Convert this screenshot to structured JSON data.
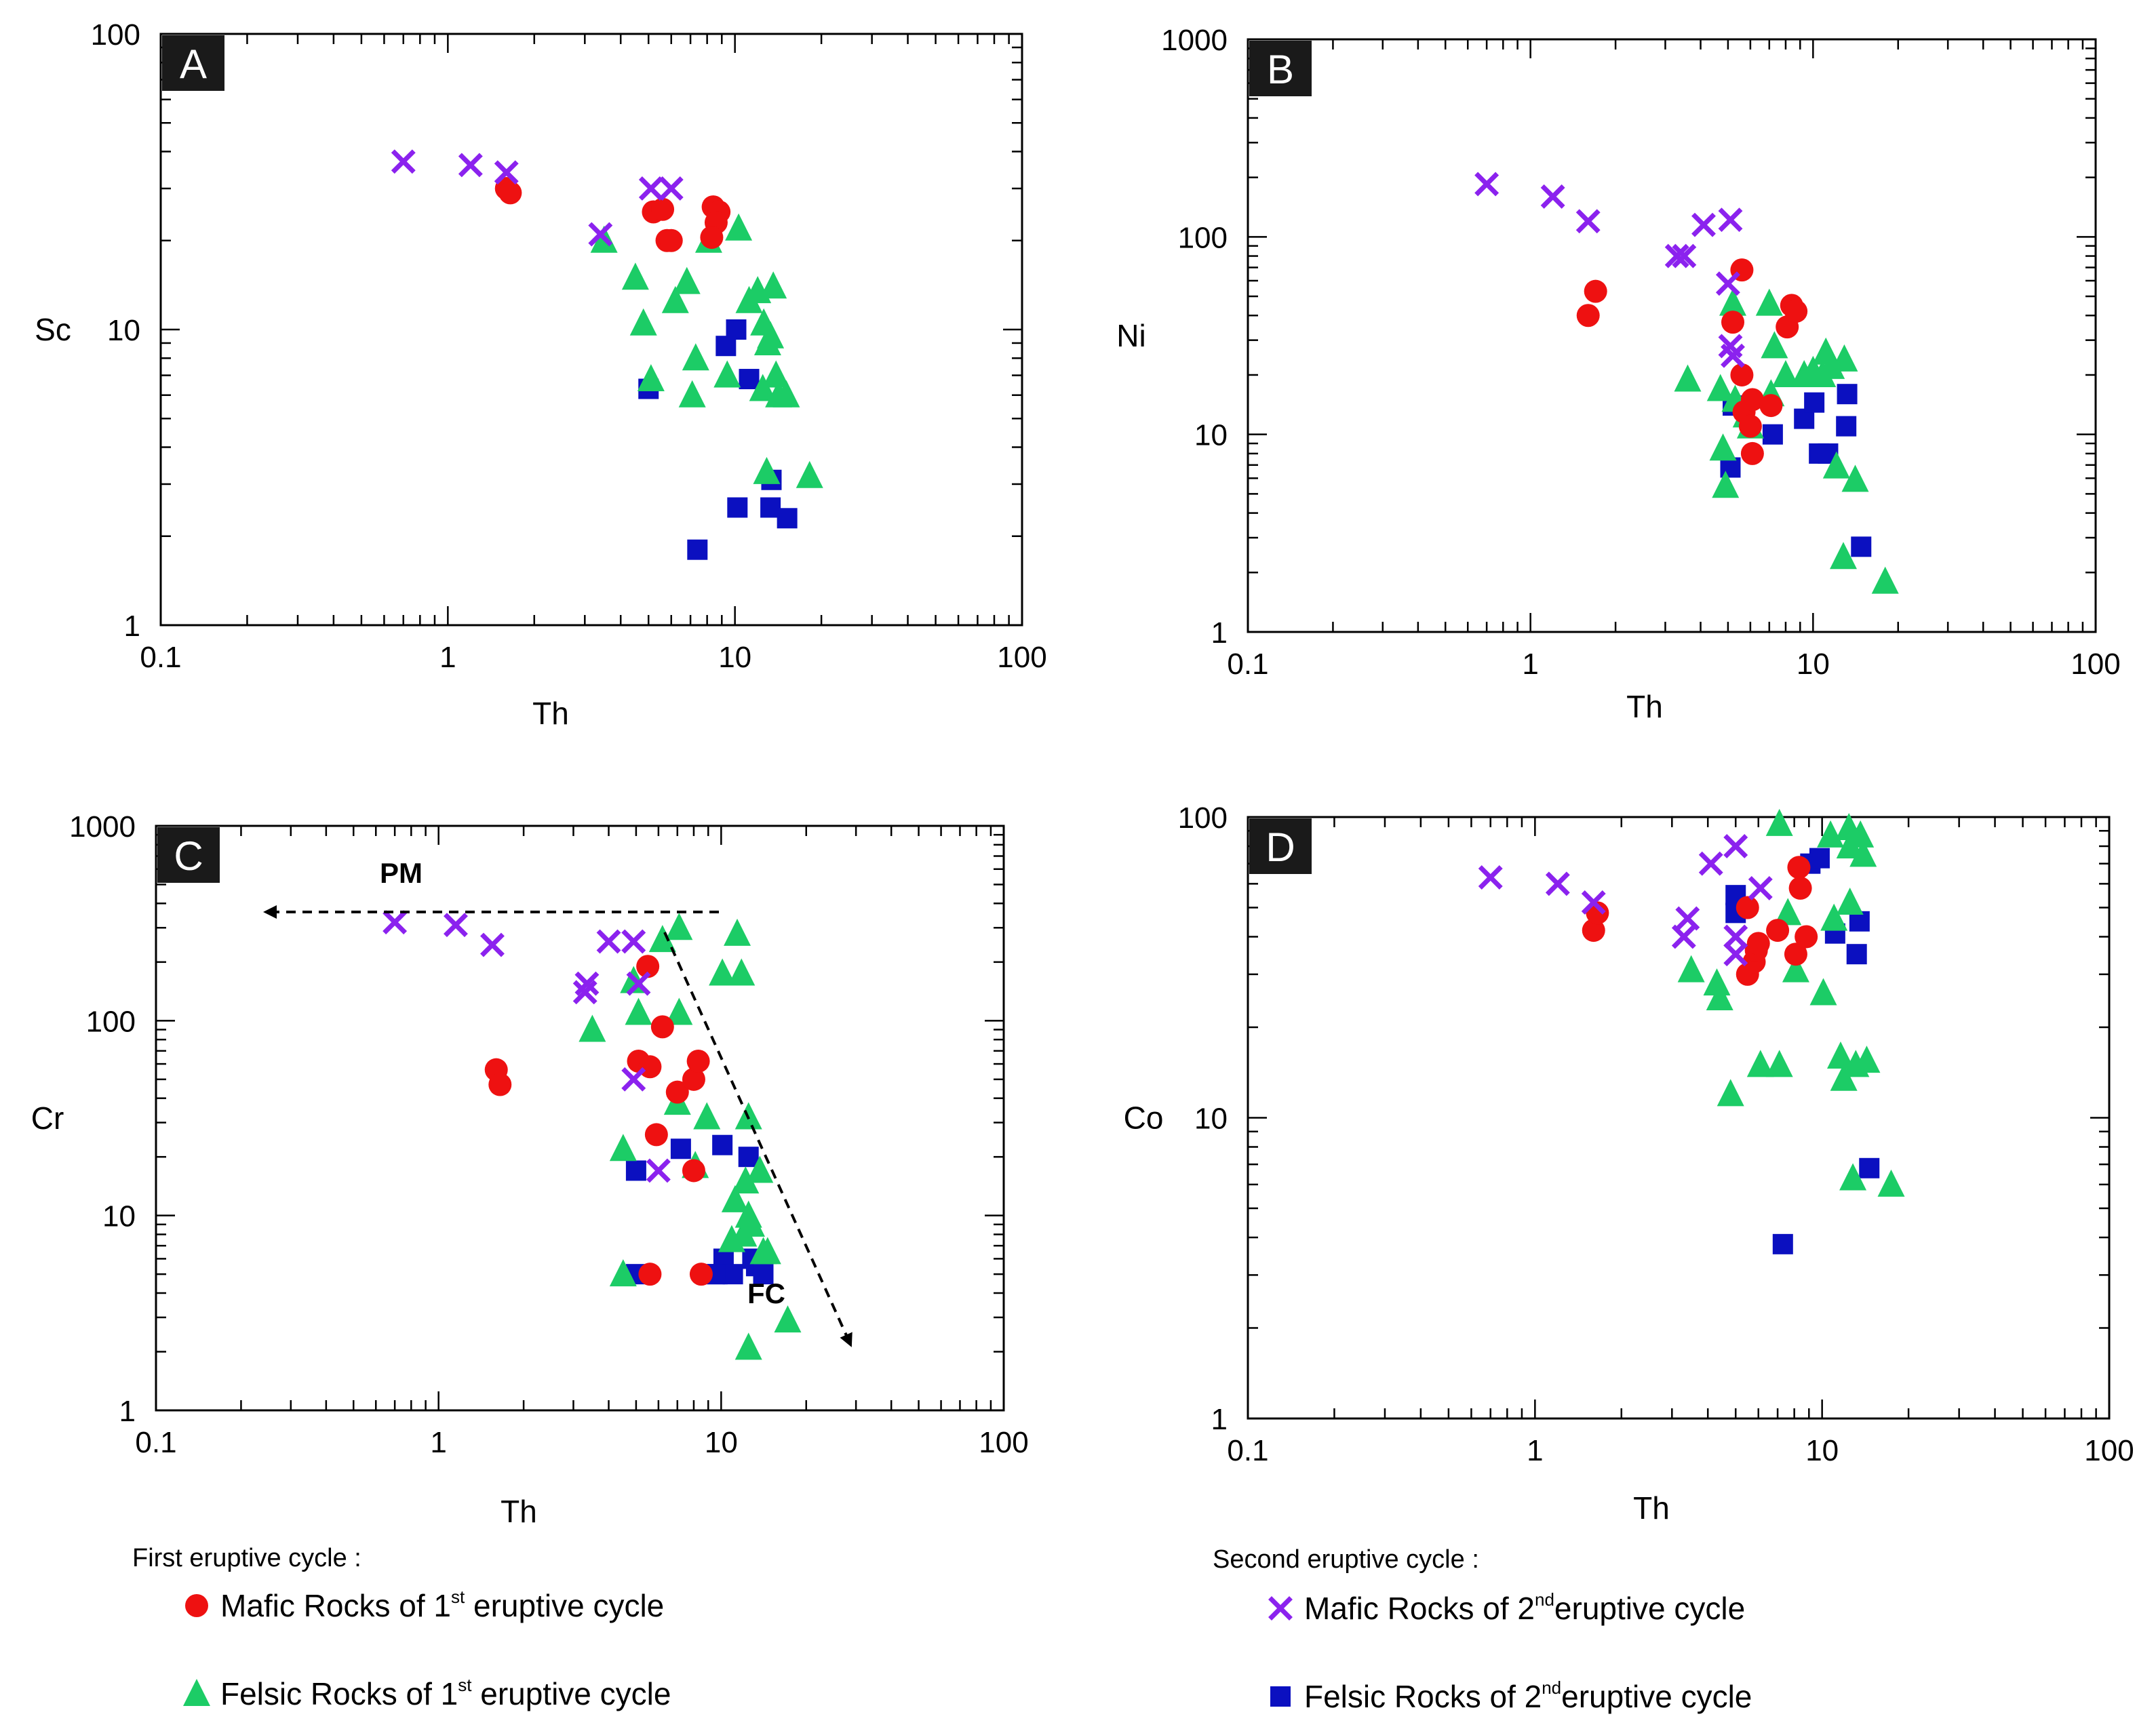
{
  "colors": {
    "mafic1": "#ee1111",
    "felsic1": "#1ccc66",
    "mafic2": "#8b22ee",
    "felsic2": "#0b10c0"
  },
  "legend": {
    "first_title": "First eruptive cycle :",
    "second_title": "Second eruptive cycle :",
    "items": [
      {
        "key": "mafic1",
        "marker": "circle",
        "pre": "Mafic Rocks of 1",
        "sup": "st",
        "post": " eruptive cycle"
      },
      {
        "key": "felsic1",
        "marker": "triangle",
        "pre": "Felsic Rocks of 1",
        "sup": "st",
        "post": " eruptive cycle"
      },
      {
        "key": "mafic2",
        "marker": "cross",
        "pre": "Mafic Rocks of 2",
        "sup": "nd",
        "post": "eruptive cycle"
      },
      {
        "key": "felsic2",
        "marker": "square",
        "pre": "Felsic Rocks of 2",
        "sup": "nd",
        "post": "eruptive cycle"
      }
    ]
  },
  "chart_data": [
    {
      "panel": "A",
      "type": "scatter",
      "xlabel": "Th",
      "ylabel": "Sc",
      "x_scale": "log",
      "y_scale": "log",
      "xlim": [
        0.1,
        100
      ],
      "ylim": [
        1,
        100
      ],
      "x_ticks": [
        "0.1",
        "1",
        "10",
        "100"
      ],
      "y_ticks": [
        "1",
        "10",
        "100"
      ],
      "series": [
        {
          "key": "mafic1",
          "points": [
            [
              1.6,
              30
            ],
            [
              1.65,
              29
            ],
            [
              5.2,
              25
            ],
            [
              5.6,
              25.5
            ],
            [
              5.8,
              20
            ],
            [
              6.0,
              20
            ],
            [
              8.4,
              26
            ],
            [
              8.8,
              25
            ],
            [
              8.6,
              23
            ],
            [
              8.3,
              20.5
            ]
          ]
        },
        {
          "key": "felsic1",
          "points": [
            [
              3.5,
              20
            ],
            [
              4.5,
              15
            ],
            [
              4.8,
              10.5
            ],
            [
              5.1,
              6.8
            ],
            [
              6.2,
              12.5
            ],
            [
              6.8,
              14.5
            ],
            [
              7.1,
              6
            ],
            [
              7.3,
              8
            ],
            [
              8.1,
              20
            ],
            [
              9.4,
              7
            ],
            [
              10.3,
              22
            ],
            [
              11.2,
              12.5
            ],
            [
              12.0,
              13.5
            ],
            [
              12.5,
              6.3
            ],
            [
              12.6,
              10.5
            ],
            [
              13.0,
              9
            ],
            [
              13.3,
              9.5
            ],
            [
              13.6,
              14
            ],
            [
              13.9,
              7
            ],
            [
              14.2,
              6
            ],
            [
              15.1,
              6
            ],
            [
              12.9,
              3.3
            ],
            [
              18.2,
              3.2
            ]
          ]
        },
        {
          "key": "mafic2",
          "points": [
            [
              0.7,
              37
            ],
            [
              1.2,
              36
            ],
            [
              1.6,
              34
            ],
            [
              3.4,
              21
            ],
            [
              5.1,
              30
            ],
            [
              6.0,
              30
            ]
          ]
        },
        {
          "key": "felsic2",
          "points": [
            [
              5.0,
              6.3
            ],
            [
              7.4,
              1.8
            ],
            [
              9.3,
              8.8
            ],
            [
              10.1,
              10
            ],
            [
              11.2,
              6.8
            ],
            [
              10.2,
              2.5
            ],
            [
              13.4,
              3.1
            ],
            [
              13.3,
              2.5
            ],
            [
              15.2,
              2.3
            ]
          ]
        }
      ]
    },
    {
      "panel": "B",
      "type": "scatter",
      "xlabel": "Th",
      "ylabel": "Ni",
      "x_scale": "log",
      "y_scale": "log",
      "xlim": [
        0.1,
        100
      ],
      "ylim": [
        1,
        1000
      ],
      "x_ticks": [
        "0.1",
        "1",
        "10",
        "100"
      ],
      "y_ticks": [
        "1",
        "10",
        "100",
        "1000"
      ],
      "series": [
        {
          "key": "mafic1",
          "points": [
            [
              1.6,
              40
            ],
            [
              1.7,
              53
            ],
            [
              5.2,
              37
            ],
            [
              5.6,
              68
            ],
            [
              5.6,
              20
            ],
            [
              5.7,
              13
            ],
            [
              6.0,
              11
            ],
            [
              6.1,
              15
            ],
            [
              6.1,
              8
            ],
            [
              7.1,
              14
            ],
            [
              8.1,
              35
            ],
            [
              8.4,
              45
            ],
            [
              8.7,
              42
            ]
          ]
        },
        {
          "key": "felsic1",
          "points": [
            [
              3.6,
              19
            ],
            [
              4.7,
              17
            ],
            [
              4.8,
              8.5
            ],
            [
              4.9,
              5.5
            ],
            [
              5.2,
              46
            ],
            [
              5.3,
              15
            ],
            [
              5.8,
              12.5
            ],
            [
              6.0,
              11
            ],
            [
              7.0,
              46
            ],
            [
              7.1,
              16
            ],
            [
              7.3,
              28
            ],
            [
              8.0,
              20
            ],
            [
              9.3,
              20
            ],
            [
              10.0,
              21
            ],
            [
              10.8,
              20
            ],
            [
              11.1,
              26
            ],
            [
              11.6,
              22
            ],
            [
              12.1,
              6.9
            ],
            [
              12.9,
              24
            ],
            [
              12.8,
              2.4
            ],
            [
              14.1,
              5.9
            ],
            [
              18.0,
              1.8
            ]
          ]
        },
        {
          "key": "mafic2",
          "points": [
            [
              0.7,
              185
            ],
            [
              1.2,
              160
            ],
            [
              1.6,
              120
            ],
            [
              3.3,
              80
            ],
            [
              3.5,
              80
            ],
            [
              4.1,
              115
            ],
            [
              5.1,
              122
            ],
            [
              5.0,
              58
            ],
            [
              5.1,
              28
            ],
            [
              5.2,
              25
            ]
          ]
        },
        {
          "key": "felsic2",
          "points": [
            [
              5.1,
              6.8
            ],
            [
              5.2,
              14
            ],
            [
              7.2,
              10
            ],
            [
              9.3,
              12
            ],
            [
              10.1,
              14.5
            ],
            [
              10.5,
              8
            ],
            [
              11.3,
              8
            ],
            [
              13.1,
              11
            ],
            [
              13.2,
              16
            ],
            [
              14.8,
              2.7
            ]
          ]
        }
      ]
    },
    {
      "panel": "C",
      "type": "scatter",
      "xlabel": "Th",
      "ylabel": "Cr",
      "x_scale": "log",
      "y_scale": "log",
      "xlim": [
        0.1,
        100
      ],
      "ylim": [
        1,
        1000
      ],
      "x_ticks": [
        "0.1",
        "1",
        "10",
        "100"
      ],
      "y_ticks": [
        "1",
        "10",
        "100",
        "1000"
      ],
      "annotations": [
        {
          "text": "PM"
        },
        {
          "text": "FC"
        }
      ],
      "series": [
        {
          "key": "mafic1",
          "points": [
            [
              1.6,
              56
            ],
            [
              1.65,
              47
            ],
            [
              5.1,
              62
            ],
            [
              5.5,
              190
            ],
            [
              5.6,
              58
            ],
            [
              5.9,
              26
            ],
            [
              6.2,
              93
            ],
            [
              7.0,
              43
            ],
            [
              8.0,
              50
            ],
            [
              8.3,
              62
            ],
            [
              8.0,
              17
            ],
            [
              8.5,
              5
            ],
            [
              5.6,
              5
            ]
          ]
        },
        {
          "key": "felsic1",
          "points": [
            [
              3.5,
              90
            ],
            [
              4.5,
              22
            ],
            [
              4.5,
              5
            ],
            [
              4.9,
              160
            ],
            [
              5.1,
              110
            ],
            [
              6.2,
              260
            ],
            [
              7.1,
              300
            ],
            [
              7.1,
              110
            ],
            [
              7.0,
              38
            ],
            [
              8.1,
              18
            ],
            [
              8.9,
              32
            ],
            [
              10.1,
              175
            ],
            [
              11.4,
              280
            ],
            [
              11.8,
              175
            ],
            [
              11.2,
              12
            ],
            [
              12.2,
              15
            ],
            [
              12.5,
              32
            ],
            [
              12.8,
              9
            ],
            [
              12.0,
              8
            ],
            [
              13.7,
              17
            ],
            [
              14.1,
              6.5
            ],
            [
              14.6,
              6.5
            ],
            [
              12.5,
              2.1
            ],
            [
              17.2,
              2.9
            ],
            [
              10.9,
              7.5
            ],
            [
              12.5,
              10
            ]
          ]
        },
        {
          "key": "mafic2",
          "points": [
            [
              0.7,
              320
            ],
            [
              1.15,
              310
            ],
            [
              1.55,
              245
            ],
            [
              3.3,
              140
            ],
            [
              3.35,
              155
            ],
            [
              4.0,
              255
            ],
            [
              4.9,
              255
            ],
            [
              5.1,
              155
            ],
            [
              4.9,
              50
            ],
            [
              6.0,
              17
            ]
          ]
        },
        {
          "key": "felsic2",
          "points": [
            [
              5.0,
              17
            ],
            [
              5.0,
              5
            ],
            [
              7.2,
              22
            ],
            [
              9.7,
              5
            ],
            [
              10.1,
              23
            ],
            [
              10.2,
              6
            ],
            [
              11.0,
              5
            ],
            [
              12.5,
              20
            ],
            [
              12.9,
              6
            ],
            [
              13.3,
              5.5
            ],
            [
              14.1,
              5
            ],
            [
              9.5,
              5
            ]
          ]
        }
      ]
    },
    {
      "panel": "D",
      "type": "scatter",
      "xlabel": "Th",
      "ylabel": "Co",
      "x_scale": "log",
      "y_scale": "log",
      "xlim": [
        0.1,
        100
      ],
      "ylim": [
        1,
        100
      ],
      "x_ticks": [
        "0.1",
        "1",
        "10",
        "100"
      ],
      "y_ticks": [
        "1",
        "10",
        "100"
      ],
      "series": [
        {
          "key": "mafic1",
          "points": [
            [
              1.6,
              42
            ],
            [
              1.65,
              48
            ],
            [
              5.5,
              50
            ],
            [
              5.5,
              30
            ],
            [
              5.8,
              33
            ],
            [
              5.9,
              36
            ],
            [
              6.0,
              38
            ],
            [
              7.0,
              42
            ],
            [
              8.1,
              35
            ],
            [
              8.3,
              68
            ],
            [
              8.4,
              58
            ],
            [
              8.8,
              40
            ]
          ]
        },
        {
          "key": "felsic1",
          "points": [
            [
              3.5,
              31
            ],
            [
              4.3,
              28
            ],
            [
              4.4,
              25
            ],
            [
              4.8,
              12
            ],
            [
              6.1,
              15
            ],
            [
              7.1,
              95
            ],
            [
              7.1,
              15
            ],
            [
              7.6,
              48
            ],
            [
              8.1,
              31
            ],
            [
              10.1,
              26
            ],
            [
              10.7,
              87
            ],
            [
              11.0,
              46
            ],
            [
              11.6,
              16
            ],
            [
              11.9,
              13.5
            ],
            [
              12.4,
              92
            ],
            [
              12.5,
              80
            ],
            [
              12.5,
              52
            ],
            [
              12.8,
              6.3
            ],
            [
              13.1,
              15
            ],
            [
              13.6,
              87
            ],
            [
              13.9,
              75
            ],
            [
              14.3,
              15.5
            ],
            [
              17.4,
              6
            ]
          ]
        },
        {
          "key": "mafic2",
          "points": [
            [
              0.7,
              63
            ],
            [
              1.2,
              60
            ],
            [
              1.6,
              52
            ],
            [
              3.3,
              40
            ],
            [
              3.4,
              46
            ],
            [
              4.1,
              70
            ],
            [
              5.0,
              80
            ],
            [
              5.0,
              40
            ],
            [
              5.0,
              35
            ],
            [
              6.1,
              58
            ]
          ]
        },
        {
          "key": "felsic2",
          "points": [
            [
              5.0,
              55
            ],
            [
              5.0,
              48
            ],
            [
              7.3,
              3.8
            ],
            [
              9.1,
              70
            ],
            [
              9.8,
              73
            ],
            [
              11.1,
              41
            ],
            [
              13.2,
              35
            ],
            [
              13.5,
              45
            ],
            [
              14.6,
              6.8
            ]
          ]
        }
      ]
    }
  ]
}
